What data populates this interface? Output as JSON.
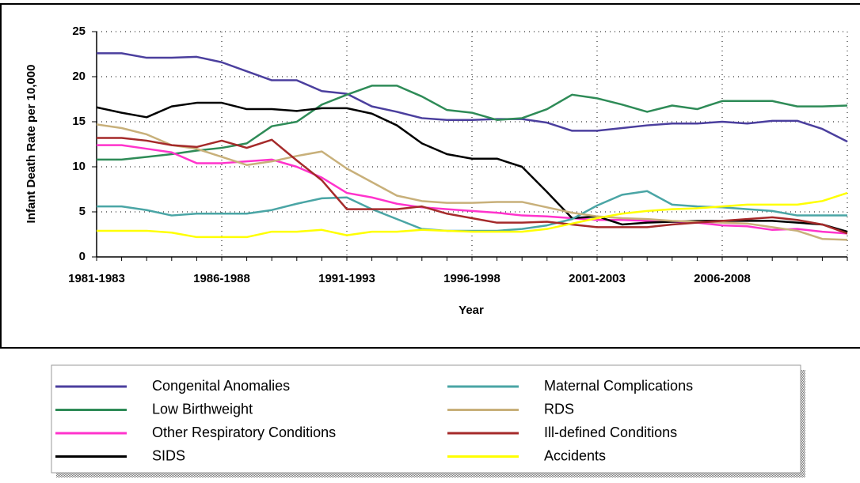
{
  "chart_data": {
    "type": "line",
    "y_label": "Infant Death Rate per 10,000",
    "x_label": "Year",
    "categories": [
      "1981-1983",
      null,
      null,
      null,
      null,
      "1986-1988",
      null,
      null,
      null,
      null,
      "1991-1993",
      null,
      null,
      null,
      null,
      "1996-1998",
      null,
      null,
      null,
      null,
      "2001-2003",
      null,
      null,
      null,
      null,
      "2006-2008",
      null,
      null,
      null,
      null,
      null
    ],
    "ylim": [
      0,
      25
    ],
    "yticks": [
      0,
      5,
      10,
      15,
      20,
      25
    ],
    "grid": true,
    "series": [
      {
        "name": "Congenital Anomalies",
        "color": "#4b3f9e",
        "values": [
          22.6,
          22.6,
          22.1,
          22.1,
          22.2,
          21.6,
          20.6,
          19.6,
          19.6,
          18.4,
          18.1,
          16.7,
          16.1,
          15.4,
          15.2,
          15.2,
          15.3,
          15.3,
          14.9,
          14.0,
          14.0,
          14.3,
          14.6,
          14.8,
          14.8,
          15.0,
          14.8,
          15.1,
          15.1,
          14.2,
          12.8
        ]
      },
      {
        "name": "Low Birthweight",
        "color": "#2e8b57",
        "values": [
          10.8,
          10.8,
          11.1,
          11.4,
          11.8,
          12.1,
          12.6,
          14.5,
          15.0,
          16.9,
          18.0,
          19.0,
          19.0,
          17.8,
          16.3,
          16.0,
          15.2,
          15.4,
          16.4,
          18.0,
          17.6,
          16.9,
          16.1,
          16.8,
          16.4,
          17.3,
          17.3,
          17.3,
          16.7,
          16.7,
          16.8
        ]
      },
      {
        "name": "Other Respiratory Conditions",
        "color": "#ff33cc",
        "values": [
          12.4,
          12.4,
          12.0,
          11.6,
          10.4,
          10.4,
          10.6,
          10.8,
          10.0,
          8.8,
          7.1,
          6.6,
          5.9,
          5.5,
          5.3,
          5.1,
          4.9,
          4.6,
          4.5,
          4.3,
          4.1,
          4.1,
          4.0,
          3.9,
          3.8,
          3.5,
          3.4,
          3.0,
          3.1,
          2.8,
          2.6
        ]
      },
      {
        "name": "SIDS",
        "color": "#000000",
        "values": [
          16.6,
          16.0,
          15.5,
          16.7,
          17.1,
          17.1,
          16.4,
          16.4,
          16.2,
          16.5,
          16.5,
          15.9,
          14.6,
          12.6,
          11.4,
          10.9,
          10.9,
          10.0,
          7.2,
          4.3,
          4.5,
          3.6,
          3.8,
          3.9,
          4.0,
          4.0,
          4.0,
          4.0,
          3.8,
          3.6,
          2.8
        ]
      },
      {
        "name": "Maternal Complications",
        "color": "#4aa5a5",
        "values": [
          5.6,
          5.6,
          5.2,
          4.6,
          4.8,
          4.8,
          4.8,
          5.2,
          5.9,
          6.5,
          6.6,
          5.3,
          4.2,
          3.1,
          2.9,
          2.9,
          2.9,
          3.1,
          3.5,
          4.2,
          5.7,
          6.9,
          7.3,
          5.8,
          5.6,
          5.5,
          5.3,
          5.1,
          4.6,
          4.6,
          4.6
        ]
      },
      {
        "name": "RDS",
        "color": "#c8b07a",
        "values": [
          14.7,
          14.3,
          13.6,
          12.4,
          12.0,
          11.1,
          10.2,
          10.6,
          11.2,
          11.7,
          9.8,
          8.3,
          6.8,
          6.2,
          6.0,
          6.0,
          6.1,
          6.1,
          5.5,
          4.9,
          4.5,
          4.3,
          4.2,
          4.0,
          3.9,
          3.8,
          3.7,
          3.3,
          2.9,
          2.0,
          1.9
        ]
      },
      {
        "name": "Ill-defined Conditions",
        "color": "#a52a2a",
        "values": [
          13.2,
          13.2,
          12.9,
          12.4,
          12.2,
          12.9,
          12.1,
          13.0,
          10.7,
          8.5,
          5.3,
          5.3,
          5.3,
          5.6,
          4.8,
          4.3,
          3.8,
          3.8,
          3.9,
          3.6,
          3.3,
          3.3,
          3.3,
          3.6,
          3.8,
          4.0,
          4.2,
          4.4,
          4.1,
          3.6,
          2.6
        ]
      },
      {
        "name": "Accidents",
        "color": "#ffff00",
        "values": [
          2.9,
          2.9,
          2.9,
          2.7,
          2.2,
          2.2,
          2.2,
          2.8,
          2.8,
          3.0,
          2.4,
          2.8,
          2.8,
          3.0,
          2.9,
          2.8,
          2.8,
          2.8,
          3.1,
          3.7,
          4.3,
          4.8,
          5.1,
          5.3,
          5.4,
          5.6,
          5.8,
          5.8,
          5.8,
          6.2,
          7.1
        ]
      }
    ]
  }
}
